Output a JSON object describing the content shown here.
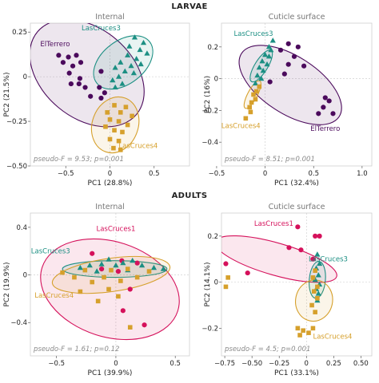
{
  "colors": {
    "ElTerrero": "#4b0a5c",
    "LasCruces1": "#d5115b",
    "LasCruces3": "#1c8f83",
    "LasCruces4": "#d6a02c"
  },
  "sections": [
    {
      "id": "larvae",
      "label": "LARVAE"
    },
    {
      "id": "adults",
      "label": "ADULTS"
    }
  ],
  "chart_data": [
    {
      "type": "scatter",
      "section": "LARVAE",
      "title": "Internal",
      "xlabel": "PC1 (28.8%)",
      "ylabel": "PC2 (21.5%)",
      "xlim": [
        -0.9,
        0.9
      ],
      "ylim": [
        -0.5,
        0.3
      ],
      "xticks": [
        -0.5,
        0,
        0.5
      ],
      "yticks": [
        -0.5,
        -0.25,
        0,
        0.25
      ],
      "xtick_labels": [
        "−0.5",
        "0",
        "0.5"
      ],
      "ytick_labels": [
        "−0.50",
        "−0.25",
        "0",
        "0.25"
      ],
      "stat": "pseudo-F = 9.53; p=0.001",
      "groups": [
        {
          "name": "ElTerrero",
          "color": "#4b0a5c",
          "marker": "circle",
          "label_text": "ElTerrero",
          "label_x": -0.62,
          "label_y": 0.17,
          "ellipse": {
            "cx": -0.26,
            "cy": 0.02,
            "rx": 0.73,
            "ry": 0.25,
            "angle": -40
          },
          "points": [
            [
              -0.58,
              0.12
            ],
            [
              -0.53,
              0.08
            ],
            [
              -0.47,
              0.11
            ],
            [
              -0.38,
              0.12
            ],
            [
              -0.42,
              0.06
            ],
            [
              -0.33,
              0.08
            ],
            [
              -0.46,
              0.02
            ],
            [
              -0.34,
              -0.01
            ],
            [
              -0.44,
              -0.04
            ],
            [
              -0.35,
              -0.04
            ],
            [
              -0.28,
              -0.06
            ],
            [
              -0.1,
              0.03
            ],
            [
              -0.22,
              -0.11
            ],
            [
              -0.12,
              -0.06
            ],
            [
              -0.06,
              -0.09
            ],
            [
              -0.1,
              -0.12
            ]
          ]
        },
        {
          "name": "LasCruces3",
          "color": "#1c8f83",
          "marker": "triangle",
          "label_text": "LasCruces3",
          "label_x": -0.1,
          "label_y": 0.26,
          "ellipse": {
            "cx": 0.15,
            "cy": 0.08,
            "rx": 0.38,
            "ry": 0.12,
            "angle": 38
          },
          "points": [
            [
              0.28,
              0.22
            ],
            [
              0.38,
              0.19
            ],
            [
              0.22,
              0.17
            ],
            [
              0.34,
              0.15
            ],
            [
              0.42,
              0.13
            ],
            [
              0.2,
              0.12
            ],
            [
              0.3,
              0.1
            ],
            [
              0.12,
              0.08
            ],
            [
              0.24,
              0.06
            ],
            [
              0.35,
              0.07
            ],
            [
              0.06,
              0.05
            ],
            [
              0.17,
              0.03
            ],
            [
              0.1,
              0.0
            ],
            [
              0.27,
              0.02
            ],
            [
              0.03,
              -0.02
            ],
            [
              0.14,
              -0.04
            ],
            [
              0.06,
              -0.06
            ]
          ]
        },
        {
          "name": "LasCruces4",
          "color": "#d6a02c",
          "marker": "square",
          "label_text": "LasCruces4",
          "label_x": 0.32,
          "label_y": -0.4,
          "ellipse": {
            "cx": 0.06,
            "cy": -0.27,
            "rx": 0.26,
            "ry": 0.16,
            "angle": -20
          },
          "points": [
            [
              0.05,
              -0.16
            ],
            [
              0.18,
              -0.17
            ],
            [
              -0.03,
              -0.2
            ],
            [
              0.12,
              -0.2
            ],
            [
              0.25,
              -0.22
            ],
            [
              0.0,
              -0.24
            ],
            [
              0.1,
              -0.25
            ],
            [
              0.2,
              -0.27
            ],
            [
              -0.05,
              -0.28
            ],
            [
              0.05,
              -0.3
            ],
            [
              0.14,
              -0.31
            ],
            [
              0.0,
              -0.35
            ],
            [
              0.1,
              -0.36
            ],
            [
              0.04,
              -0.4
            ],
            [
              0.12,
              -0.41
            ]
          ]
        }
      ]
    },
    {
      "type": "scatter",
      "section": "LARVAE",
      "title": "Cuticle surface",
      "xlabel": "PC1 (32.4%)",
      "ylabel": "PC2 (16%)",
      "xlim": [
        -0.45,
        1.1
      ],
      "ylim": [
        -0.55,
        0.35
      ],
      "xticks": [
        -0.5,
        0,
        0.5,
        1
      ],
      "yticks": [
        -0.4,
        -0.2,
        0,
        0.2
      ],
      "xtick_labels": [
        "−0.5",
        "0",
        "0.5",
        "1.0"
      ],
      "ytick_labels": [
        "−0.4",
        "−0.2",
        "0",
        "0.2"
      ],
      "stat": "pseudo-F = 8.51; p=0.001",
      "groups": [
        {
          "name": "ElTerrero",
          "color": "#4b0a5c",
          "marker": "circle",
          "label_text": "ElTerrero",
          "label_x": 0.62,
          "label_y": -0.33,
          "ellipse": {
            "cx": 0.26,
            "cy": -0.04,
            "rx": 0.6,
            "ry": 0.18,
            "angle": -33
          },
          "points": [
            [
              0.24,
              0.22
            ],
            [
              0.34,
              0.2
            ],
            [
              0.16,
              0.18
            ],
            [
              0.3,
              0.14
            ],
            [
              0.24,
              0.09
            ],
            [
              0.4,
              0.08
            ],
            [
              0.2,
              0.03
            ],
            [
              0.05,
              -0.02
            ],
            [
              0.62,
              -0.12
            ],
            [
              0.66,
              -0.14
            ],
            [
              0.6,
              -0.18
            ],
            [
              0.55,
              -0.22
            ],
            [
              0.7,
              -0.22
            ]
          ]
        },
        {
          "name": "LasCruces3",
          "color": "#1c8f83",
          "marker": "triangle",
          "label_text": "LasCruces3",
          "label_x": -0.12,
          "label_y": 0.27,
          "ellipse": {
            "cx": -0.04,
            "cy": 0.08,
            "rx": 0.19,
            "ry": 0.04,
            "angle": 58
          },
          "points": [
            [
              0.08,
              0.24
            ],
            [
              0.04,
              0.2
            ],
            [
              0.06,
              0.18
            ],
            [
              0.0,
              0.15
            ],
            [
              0.04,
              0.14
            ],
            [
              -0.03,
              0.11
            ],
            [
              0.02,
              0.09
            ],
            [
              -0.06,
              0.07
            ],
            [
              -0.02,
              0.05
            ],
            [
              -0.08,
              0.02
            ],
            [
              -0.04,
              0.0
            ],
            [
              -0.1,
              -0.03
            ]
          ]
        },
        {
          "name": "LasCruces4",
          "color": "#d6a02c",
          "marker": "square",
          "label_text": "LasCruces4",
          "label_x": -0.25,
          "label_y": -0.31,
          "ellipse": {
            "cx": -0.13,
            "cy": -0.1,
            "rx": 0.16,
            "ry": 0.03,
            "angle": 62
          },
          "points": [
            [
              -0.06,
              -0.05
            ],
            [
              -0.09,
              -0.08
            ],
            [
              -0.12,
              -0.1
            ],
            [
              -0.1,
              -0.13
            ],
            [
              -0.14,
              -0.15
            ],
            [
              -0.16,
              -0.18
            ],
            [
              -0.15,
              -0.21
            ],
            [
              -0.2,
              -0.25
            ]
          ]
        }
      ]
    },
    {
      "type": "scatter",
      "section": "ADULTS",
      "title": "Internal",
      "xlabel": "PC1 (39.9%)",
      "ylabel": "PC2 (19.9%)",
      "xlim": [
        -0.72,
        0.62
      ],
      "ylim": [
        -0.68,
        0.52
      ],
      "xticks": [
        -0.5,
        0,
        0.5
      ],
      "yticks": [
        -0.4,
        0,
        0.4
      ],
      "xtick_labels": [
        "−0.5",
        "0",
        "0.5"
      ],
      "ytick_labels": [
        "−0.4",
        "0",
        "0.4"
      ],
      "stat": "pseudo-F = 1.61; p=0.12",
      "groups": [
        {
          "name": "LasCruces1",
          "color": "#d5115b",
          "marker": "circle",
          "label_text": "LasCruces1",
          "label_x": 0.0,
          "label_y": 0.37,
          "ellipse": {
            "cx": -0.05,
            "cy": -0.12,
            "rx": 0.6,
            "ry": 0.4,
            "angle": -18
          },
          "points": [
            [
              -0.2,
              0.18
            ],
            [
              0.05,
              0.12
            ],
            [
              0.18,
              0.1
            ],
            [
              -0.12,
              0.05
            ],
            [
              0.02,
              0.03
            ],
            [
              0.12,
              -0.12
            ],
            [
              0.06,
              -0.3
            ],
            [
              0.24,
              -0.42
            ]
          ]
        },
        {
          "name": "LasCruces3",
          "color": "#1c8f83",
          "marker": "triangle",
          "label_text": "LasCruces3",
          "label_x": -0.55,
          "label_y": 0.18,
          "ellipse": {
            "cx": -0.01,
            "cy": 0.05,
            "rx": 0.44,
            "ry": 0.07,
            "angle": 0
          },
          "points": [
            [
              -0.3,
              0.06
            ],
            [
              -0.22,
              0.08
            ],
            [
              -0.12,
              0.09
            ],
            [
              -0.06,
              0.13
            ],
            [
              0.0,
              0.08
            ],
            [
              0.06,
              0.1
            ],
            [
              0.14,
              0.12
            ],
            [
              0.22,
              0.08
            ],
            [
              0.32,
              0.06
            ],
            [
              0.4,
              0.05
            ],
            [
              -0.16,
              0.03
            ],
            [
              0.1,
              0.04
            ]
          ]
        },
        {
          "name": "LasCruces4",
          "color": "#d6a02c",
          "marker": "square",
          "label_text": "LasCruces4",
          "label_x": -0.52,
          "label_y": -0.19,
          "ellipse": {
            "cx": -0.04,
            "cy": 0.0,
            "rx": 0.5,
            "ry": 0.14,
            "angle": 8
          },
          "points": [
            [
              -0.45,
              0.02
            ],
            [
              -0.35,
              -0.02
            ],
            [
              -0.26,
              0.04
            ],
            [
              -0.2,
              -0.06
            ],
            [
              -0.1,
              -0.02
            ],
            [
              -0.04,
              0.04
            ],
            [
              0.04,
              -0.05
            ],
            [
              0.1,
              0.05
            ],
            [
              0.18,
              -0.02
            ],
            [
              0.28,
              0.03
            ],
            [
              -0.3,
              -0.14
            ],
            [
              -0.06,
              -0.12
            ],
            [
              0.02,
              -0.18
            ],
            [
              -0.15,
              -0.22
            ],
            [
              0.12,
              -0.44
            ]
          ]
        }
      ]
    },
    {
      "type": "scatter",
      "section": "ADULTS",
      "title": "Cuticle surface",
      "xlabel": "PC1 (33.1%)",
      "ylabel": "PC2 (14.1%)",
      "xlim": [
        -0.78,
        0.6
      ],
      "ylim": [
        -0.32,
        0.3
      ],
      "xticks": [
        -0.75,
        -0.5,
        -0.25,
        0,
        0.25,
        0.5
      ],
      "yticks": [
        -0.2,
        0,
        0.2
      ],
      "xtick_labels": [
        "−0.75",
        "−0.50",
        "−0.25",
        "0",
        "0.25",
        "0.50"
      ],
      "ytick_labels": [
        "−0.2",
        "0",
        "0.2"
      ],
      "stat": "pseudo-F = 4.5; p=0.001",
      "groups": [
        {
          "name": "LasCruces1",
          "color": "#d5115b",
          "marker": "circle",
          "label_text": "LasCruces1",
          "label_x": -0.3,
          "label_y": 0.245,
          "ellipse": {
            "cx": -0.28,
            "cy": 0.1,
            "rx": 0.58,
            "ry": 0.07,
            "angle": -16
          },
          "points": [
            [
              -0.74,
              0.08
            ],
            [
              -0.08,
              0.24
            ],
            [
              0.08,
              0.2
            ],
            [
              0.12,
              0.2
            ],
            [
              -0.16,
              0.15
            ],
            [
              -0.05,
              0.14
            ],
            [
              0.06,
              0.1
            ],
            [
              -0.54,
              0.04
            ]
          ]
        },
        {
          "name": "LasCruces3",
          "color": "#1c8f83",
          "marker": "triangle",
          "label_text": "LasCruces3",
          "label_x": 0.2,
          "label_y": 0.09,
          "ellipse": {
            "cx": 0.1,
            "cy": 0.01,
            "rx": 0.17,
            "ry": 0.035,
            "angle": 85
          },
          "points": [
            [
              0.1,
              0.12
            ],
            [
              0.12,
              0.08
            ],
            [
              0.09,
              0.06
            ],
            [
              0.11,
              0.03
            ],
            [
              0.08,
              0.01
            ],
            [
              0.12,
              -0.01
            ],
            [
              0.09,
              -0.03
            ],
            [
              0.11,
              -0.05
            ],
            [
              0.1,
              -0.08
            ]
          ]
        },
        {
          "name": "LasCruces4",
          "color": "#d6a02c",
          "marker": "square",
          "label_text": "LasCruces4",
          "label_x": 0.24,
          "label_y": -0.245,
          "ellipse": {
            "cx": 0.07,
            "cy": -0.08,
            "rx": 0.19,
            "ry": 0.08,
            "angle": 78
          },
          "points": [
            [
              0.08,
              0.05
            ],
            [
              0.06,
              0.02
            ],
            [
              0.1,
              -0.02
            ],
            [
              0.07,
              -0.04
            ],
            [
              0.1,
              -0.07
            ],
            [
              0.05,
              -0.1
            ],
            [
              0.08,
              -0.13
            ],
            [
              -0.08,
              -0.2
            ],
            [
              -0.03,
              -0.21
            ],
            [
              0.02,
              -0.22
            ],
            [
              0.06,
              -0.2
            ],
            [
              -0.06,
              -0.23
            ],
            [
              -0.72,
              0.02
            ],
            [
              -0.74,
              -0.02
            ]
          ]
        }
      ]
    }
  ]
}
